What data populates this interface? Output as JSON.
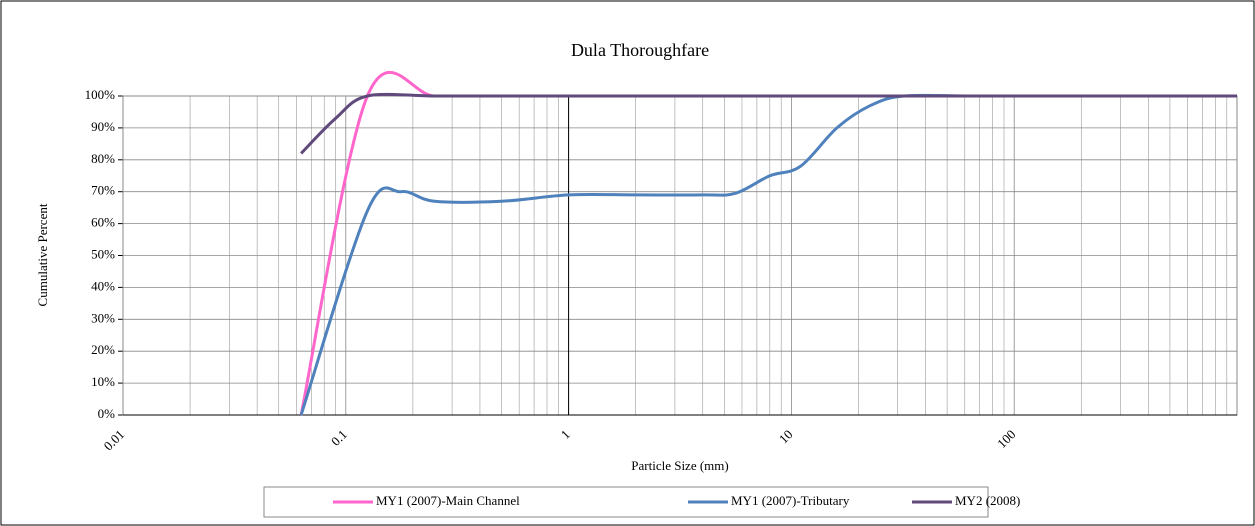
{
  "chart_data": {
    "type": "line",
    "title": "Dula Thoroughfare",
    "x_label": "Particle Size (mm)",
    "y_label": "Cumulative Percent",
    "log_x": true,
    "grid": true,
    "minor_grid": true,
    "smooth": true,
    "legend": "bottom",
    "xlim": [
      0.01,
      1000
    ],
    "xticks": [
      0.01,
      0.1,
      1,
      10,
      100
    ],
    "ylim": [
      0,
      100
    ],
    "yticks": [
      {
        "value": 0,
        "label": "0%"
      },
      {
        "value": 10,
        "label": "10%"
      },
      {
        "value": 20,
        "label": "20%"
      },
      {
        "value": 30,
        "label": "30%"
      },
      {
        "value": 40,
        "label": "40%"
      },
      {
        "value": 50,
        "label": "50%"
      },
      {
        "value": 60,
        "label": "60%"
      },
      {
        "value": 70,
        "label": "70%"
      },
      {
        "value": 80,
        "label": "80%"
      },
      {
        "value": 90,
        "label": "90%"
      },
      {
        "value": 100,
        "label": "100%"
      }
    ],
    "y_axis_crosses": 1,
    "series": [
      {
        "name": "MY1 (2007)-Main Channel",
        "color": "#ff66cc",
        "x": [
          0.063,
          0.125,
          0.25,
          0.5,
          1,
          2,
          4,
          8,
          16,
          32,
          64,
          128,
          256,
          512,
          1000
        ],
        "values": [
          0,
          100,
          100,
          100,
          100,
          100,
          100,
          100,
          100,
          100,
          100,
          100,
          100,
          100,
          100
        ]
      },
      {
        "name": "MY1 (2007)-Tributary",
        "color": "#4f81bd",
        "x": [
          0.063,
          0.125,
          0.177,
          0.25,
          0.5,
          1,
          2,
          4,
          5.6,
          8,
          11,
          16,
          22.6,
          32,
          64,
          128,
          256,
          512,
          1000
        ],
        "values": [
          0,
          64,
          70,
          67,
          67,
          69,
          69,
          69,
          69.5,
          75,
          78,
          90,
          97,
          100,
          100,
          100,
          100,
          100,
          100
        ]
      },
      {
        "name": "MY2 (2008)",
        "color": "#604a7b",
        "x": [
          0.063,
          0.09,
          0.125,
          0.25,
          0.5,
          1,
          2,
          4,
          8,
          16,
          32,
          64,
          128,
          256,
          512,
          1000
        ],
        "values": [
          82,
          93,
          100,
          100,
          100,
          100,
          100,
          100,
          100,
          100,
          100,
          100,
          100,
          100,
          100,
          100
        ]
      }
    ]
  }
}
